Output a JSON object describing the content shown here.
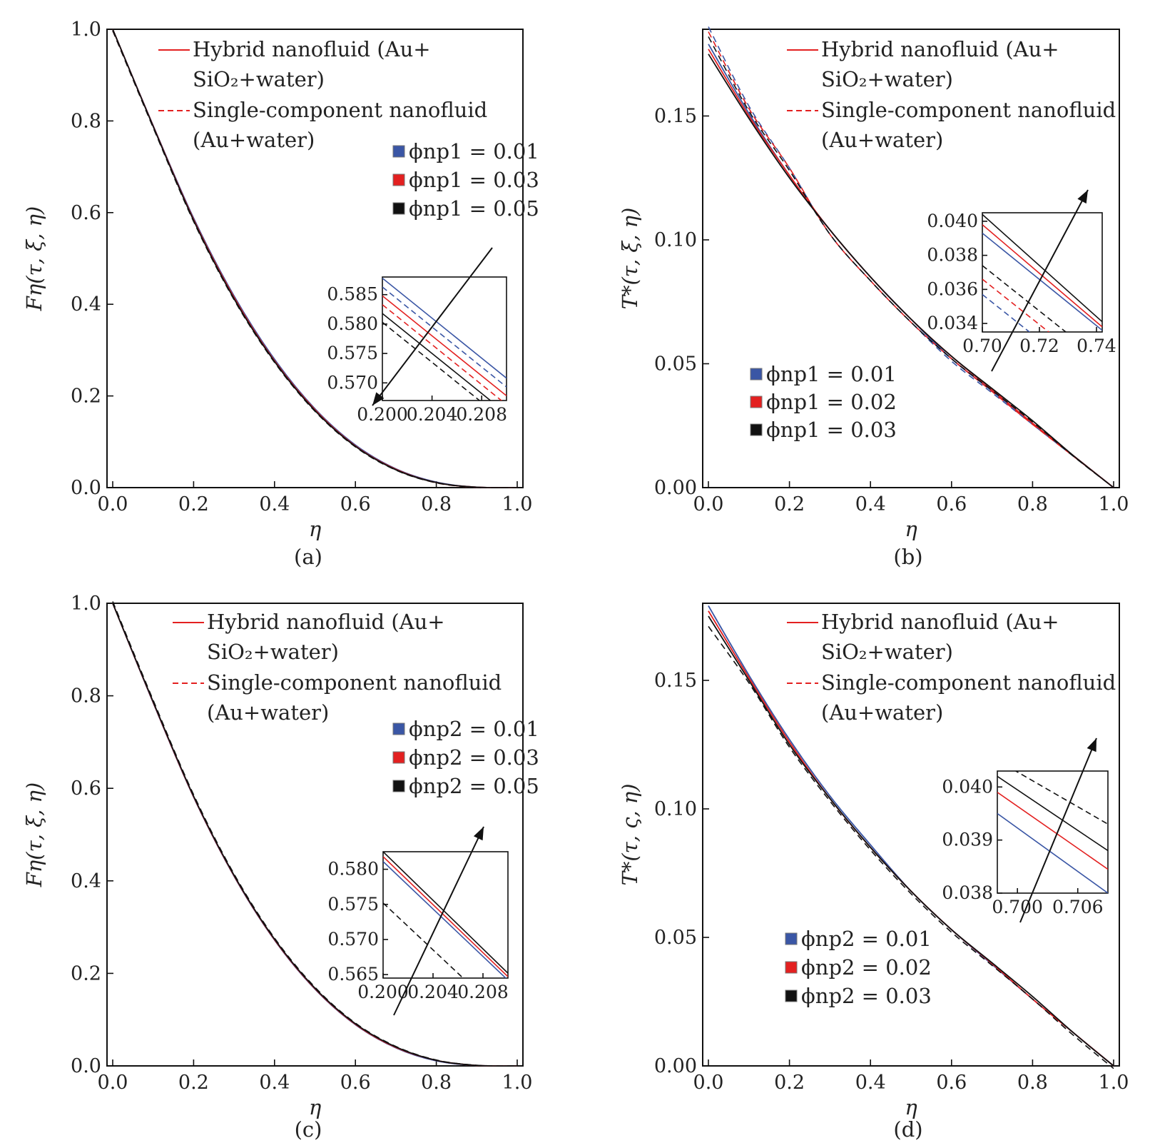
{
  "colors": {
    "blue": "#3a56a5",
    "red": "#e32020",
    "black": "#111111"
  },
  "style_legend": {
    "hybrid_line1": "Hybrid nanofluid (Au+",
    "hybrid_line2": "SiO₂+water)",
    "single_line1": "Single-component nanofluid",
    "single_line2": "(Au+water)"
  },
  "chart_data": [
    {
      "type": "line",
      "panel": "a",
      "caption": "(a)",
      "xlabel": "η",
      "ylabel": "Fη(τ, ξ, η)",
      "xlim": [
        0,
        1.0
      ],
      "ylim": [
        0,
        1.0
      ],
      "xticks": [
        "0.0",
        "0.2",
        "0.4",
        "0.6",
        "0.8",
        "1.0"
      ],
      "yticks": [
        "0.0",
        "0.2",
        "0.4",
        "0.6",
        "0.8",
        "1.0"
      ],
      "legend": [
        "ϕnp1 = 0.01",
        "ϕnp1 = 0.03",
        "ϕnp1 = 0.05"
      ],
      "legend_position": "upper-right",
      "x": [
        0.0,
        0.1,
        0.2,
        0.3,
        0.4,
        0.5,
        0.6,
        0.7,
        0.8,
        0.9,
        1.0
      ],
      "series": [
        {
          "name": "ϕnp1 = 0.01",
          "color": "blue",
          "style": "solid",
          "values": [
            1.0,
            0.79,
            0.588,
            0.418,
            0.28,
            0.172,
            0.093,
            0.041,
            0.012,
            0.001,
            0.0
          ]
        },
        {
          "name": "ϕnp1 = 0.03",
          "color": "red",
          "style": "solid",
          "values": [
            1.0,
            0.789,
            0.585,
            0.415,
            0.277,
            0.17,
            0.091,
            0.04,
            0.011,
            0.001,
            0.0
          ]
        },
        {
          "name": "ϕnp1 = 0.05",
          "color": "black",
          "style": "solid",
          "values": [
            1.0,
            0.788,
            0.583,
            0.412,
            0.275,
            0.168,
            0.09,
            0.039,
            0.011,
            0.001,
            0.0
          ]
        }
      ],
      "inset": {
        "xlim": [
          0.2,
          0.21
        ],
        "ylim": [
          0.567,
          0.588
        ],
        "xticks": [
          "0.200",
          "0.204",
          "0.208"
        ],
        "yticks": [
          "0.570",
          "0.575",
          "0.580",
          "0.585"
        ],
        "lines": [
          {
            "color": "blue",
            "style": "solid",
            "y0": 0.5878,
            "y1": 0.5708
          },
          {
            "color": "blue",
            "style": "dashed",
            "y0": 0.5863,
            "y1": 0.5693
          },
          {
            "color": "red",
            "style": "solid",
            "y0": 0.5848,
            "y1": 0.5678
          },
          {
            "color": "red",
            "style": "dashed",
            "y0": 0.5833,
            "y1": 0.5663
          },
          {
            "color": "black",
            "style": "solid",
            "y0": 0.5818,
            "y1": 0.5648
          },
          {
            "color": "black",
            "style": "dashed",
            "y0": 0.5803,
            "y1": 0.5633
          }
        ]
      }
    },
    {
      "type": "line",
      "panel": "b",
      "caption": "(b)",
      "xlabel": "η",
      "ylabel": "T*(τ, ξ, η)",
      "xlim": [
        0,
        1.0
      ],
      "ylim": [
        0,
        0.185
      ],
      "xticks": [
        "0.0",
        "0.2",
        "0.4",
        "0.6",
        "0.8",
        "1.0"
      ],
      "yticks": [
        "0.00",
        "0.05",
        "0.10",
        "0.15"
      ],
      "legend": [
        "ϕnp1 = 0.01",
        "ϕnp1 = 0.02",
        "ϕnp1 = 0.03"
      ],
      "legend_position": "lower-left",
      "x": [
        0.0,
        0.1,
        0.2,
        0.3,
        0.4,
        0.5,
        0.6,
        0.7,
        0.8,
        0.9,
        1.0
      ],
      "series": [
        {
          "name": "ϕnp1 = 0.01",
          "color": "blue",
          "style": "solid",
          "values": [
            0.179,
            0.151,
            0.126,
            0.104,
            0.085,
            0.068,
            0.052,
            0.039,
            0.026,
            0.013,
            0.0
          ]
        },
        {
          "name": "ϕnp1 = 0.02",
          "color": "red",
          "style": "solid",
          "values": [
            0.177,
            0.15,
            0.126,
            0.104,
            0.085,
            0.068,
            0.053,
            0.0395,
            0.026,
            0.013,
            0.0
          ]
        },
        {
          "name": "ϕnp1 = 0.03",
          "color": "black",
          "style": "solid",
          "values": [
            0.175,
            0.149,
            0.125,
            0.104,
            0.085,
            0.068,
            0.053,
            0.04,
            0.027,
            0.013,
            0.0
          ]
        }
      ],
      "inset": {
        "xlim": [
          0.7,
          0.742
        ],
        "ylim": [
          0.0335,
          0.0405
        ],
        "xticks": [
          "0.70",
          "0.72",
          "0.74"
        ],
        "yticks": [
          "0.034",
          "0.036",
          "0.038",
          "0.040"
        ],
        "lines": [
          {
            "color": "black",
            "style": "solid",
            "y0": 0.0404,
            "y1": 0.0341
          },
          {
            "color": "red",
            "style": "solid",
            "y0": 0.0398,
            "y1": 0.0338
          },
          {
            "color": "blue",
            "style": "solid",
            "y0": 0.0393,
            "y1": 0.0336
          },
          {
            "color": "black",
            "style": "dashed",
            "y0": 0.0374,
            "y1": 0.0318
          },
          {
            "color": "red",
            "style": "dashed",
            "y0": 0.0366,
            "y1": 0.031
          },
          {
            "color": "blue",
            "style": "dashed",
            "y0": 0.0357,
            "y1": 0.0301
          }
        ]
      }
    },
    {
      "type": "line",
      "panel": "c",
      "caption": "(c)",
      "xlabel": "η",
      "ylabel": "Fη(τ, ξ, η)",
      "xlim": [
        0,
        1.0
      ],
      "ylim": [
        0,
        1.0
      ],
      "xticks": [
        "0.0",
        "0.2",
        "0.4",
        "0.6",
        "0.8",
        "1.0"
      ],
      "yticks": [
        "0.0",
        "0.2",
        "0.4",
        "0.6",
        "0.8",
        "1.0"
      ],
      "legend": [
        "ϕnp2 = 0.01",
        "ϕnp2 = 0.03",
        "ϕnp2 = 0.05"
      ],
      "legend_position": "upper-right",
      "x": [
        0.0,
        0.1,
        0.2,
        0.3,
        0.4,
        0.5,
        0.6,
        0.7,
        0.8,
        0.9,
        1.0
      ],
      "series": [
        {
          "name": "ϕnp2 = 0.01",
          "color": "blue",
          "style": "solid",
          "values": [
            1.0,
            0.785,
            0.581,
            0.41,
            0.272,
            0.166,
            0.089,
            0.039,
            0.011,
            0.001,
            0.0
          ]
        },
        {
          "name": "ϕnp2 = 0.03",
          "color": "red",
          "style": "solid",
          "values": [
            1.0,
            0.786,
            0.582,
            0.411,
            0.273,
            0.167,
            0.09,
            0.04,
            0.012,
            0.001,
            0.0
          ]
        },
        {
          "name": "ϕnp2 = 0.05",
          "color": "black",
          "style": "solid",
          "values": [
            1.0,
            0.787,
            0.583,
            0.412,
            0.274,
            0.168,
            0.091,
            0.041,
            0.012,
            0.001,
            0.0
          ]
        }
      ],
      "inset": {
        "xlim": [
          0.2,
          0.21
        ],
        "ylim": [
          0.5645,
          0.5825
        ],
        "xticks": [
          "0.200",
          "0.204",
          "0.208"
        ],
        "yticks": [
          "0.565",
          "0.570",
          "0.575",
          "0.580"
        ],
        "lines": [
          {
            "color": "black",
            "style": "solid",
            "y0": 0.5825,
            "y1": 0.5652
          },
          {
            "color": "red",
            "style": "solid",
            "y0": 0.5818,
            "y1": 0.5647
          },
          {
            "color": "blue",
            "style": "solid",
            "y0": 0.5811,
            "y1": 0.5642
          },
          {
            "color": "black",
            "style": "dashed",
            "y0": 0.5752,
            "y1": 0.5585
          }
        ]
      }
    },
    {
      "type": "line",
      "panel": "d",
      "caption": "(d)",
      "xlabel": "η",
      "ylabel": "T*(τ, ς, η)",
      "xlim": [
        0,
        1.0
      ],
      "ylim": [
        0,
        0.18
      ],
      "xticks": [
        "0.0",
        "0.2",
        "0.4",
        "0.6",
        "0.8",
        "1.0"
      ],
      "yticks": [
        "0.00",
        "0.05",
        "0.10",
        "0.15"
      ],
      "legend": [
        "ϕnp2 = 0.01",
        "ϕnp2 = 0.02",
        "ϕnp2 = 0.03"
      ],
      "legend_position": "lower-left",
      "x": [
        0.0,
        0.1,
        0.2,
        0.3,
        0.4,
        0.5,
        0.6,
        0.7,
        0.8,
        0.9,
        1.0
      ],
      "series": [
        {
          "name": "ϕnp2 = 0.01",
          "color": "blue",
          "style": "solid",
          "values": [
            0.179,
            0.152,
            0.127,
            0.105,
            0.086,
            0.068,
            0.053,
            0.0395,
            0.026,
            0.013,
            0.0
          ]
        },
        {
          "name": "ϕnp2 = 0.02",
          "color": "red",
          "style": "solid",
          "values": [
            0.177,
            0.151,
            0.126,
            0.104,
            0.085,
            0.068,
            0.053,
            0.0398,
            0.026,
            0.013,
            0.0
          ]
        },
        {
          "name": "ϕnp2 = 0.03",
          "color": "black",
          "style": "solid",
          "values": [
            0.175,
            0.15,
            0.125,
            0.104,
            0.085,
            0.068,
            0.053,
            0.0401,
            0.027,
            0.013,
            0.0
          ]
        }
      ],
      "inset": {
        "xlim": [
          0.698,
          0.709
        ],
        "ylim": [
          0.038,
          0.0403
        ],
        "xticks": [
          "0.700",
          "0.706"
        ],
        "yticks": [
          "0.038",
          "0.039",
          "0.040"
        ],
        "lines": [
          {
            "color": "black",
            "style": "dashed",
            "y0": 0.0405,
            "y1": 0.0393
          },
          {
            "color": "black",
            "style": "solid",
            "y0": 0.0402,
            "y1": 0.0388
          },
          {
            "color": "red",
            "style": "solid",
            "y0": 0.0399,
            "y1": 0.03845
          },
          {
            "color": "blue",
            "style": "solid",
            "y0": 0.0395,
            "y1": 0.038
          }
        ]
      }
    }
  ]
}
